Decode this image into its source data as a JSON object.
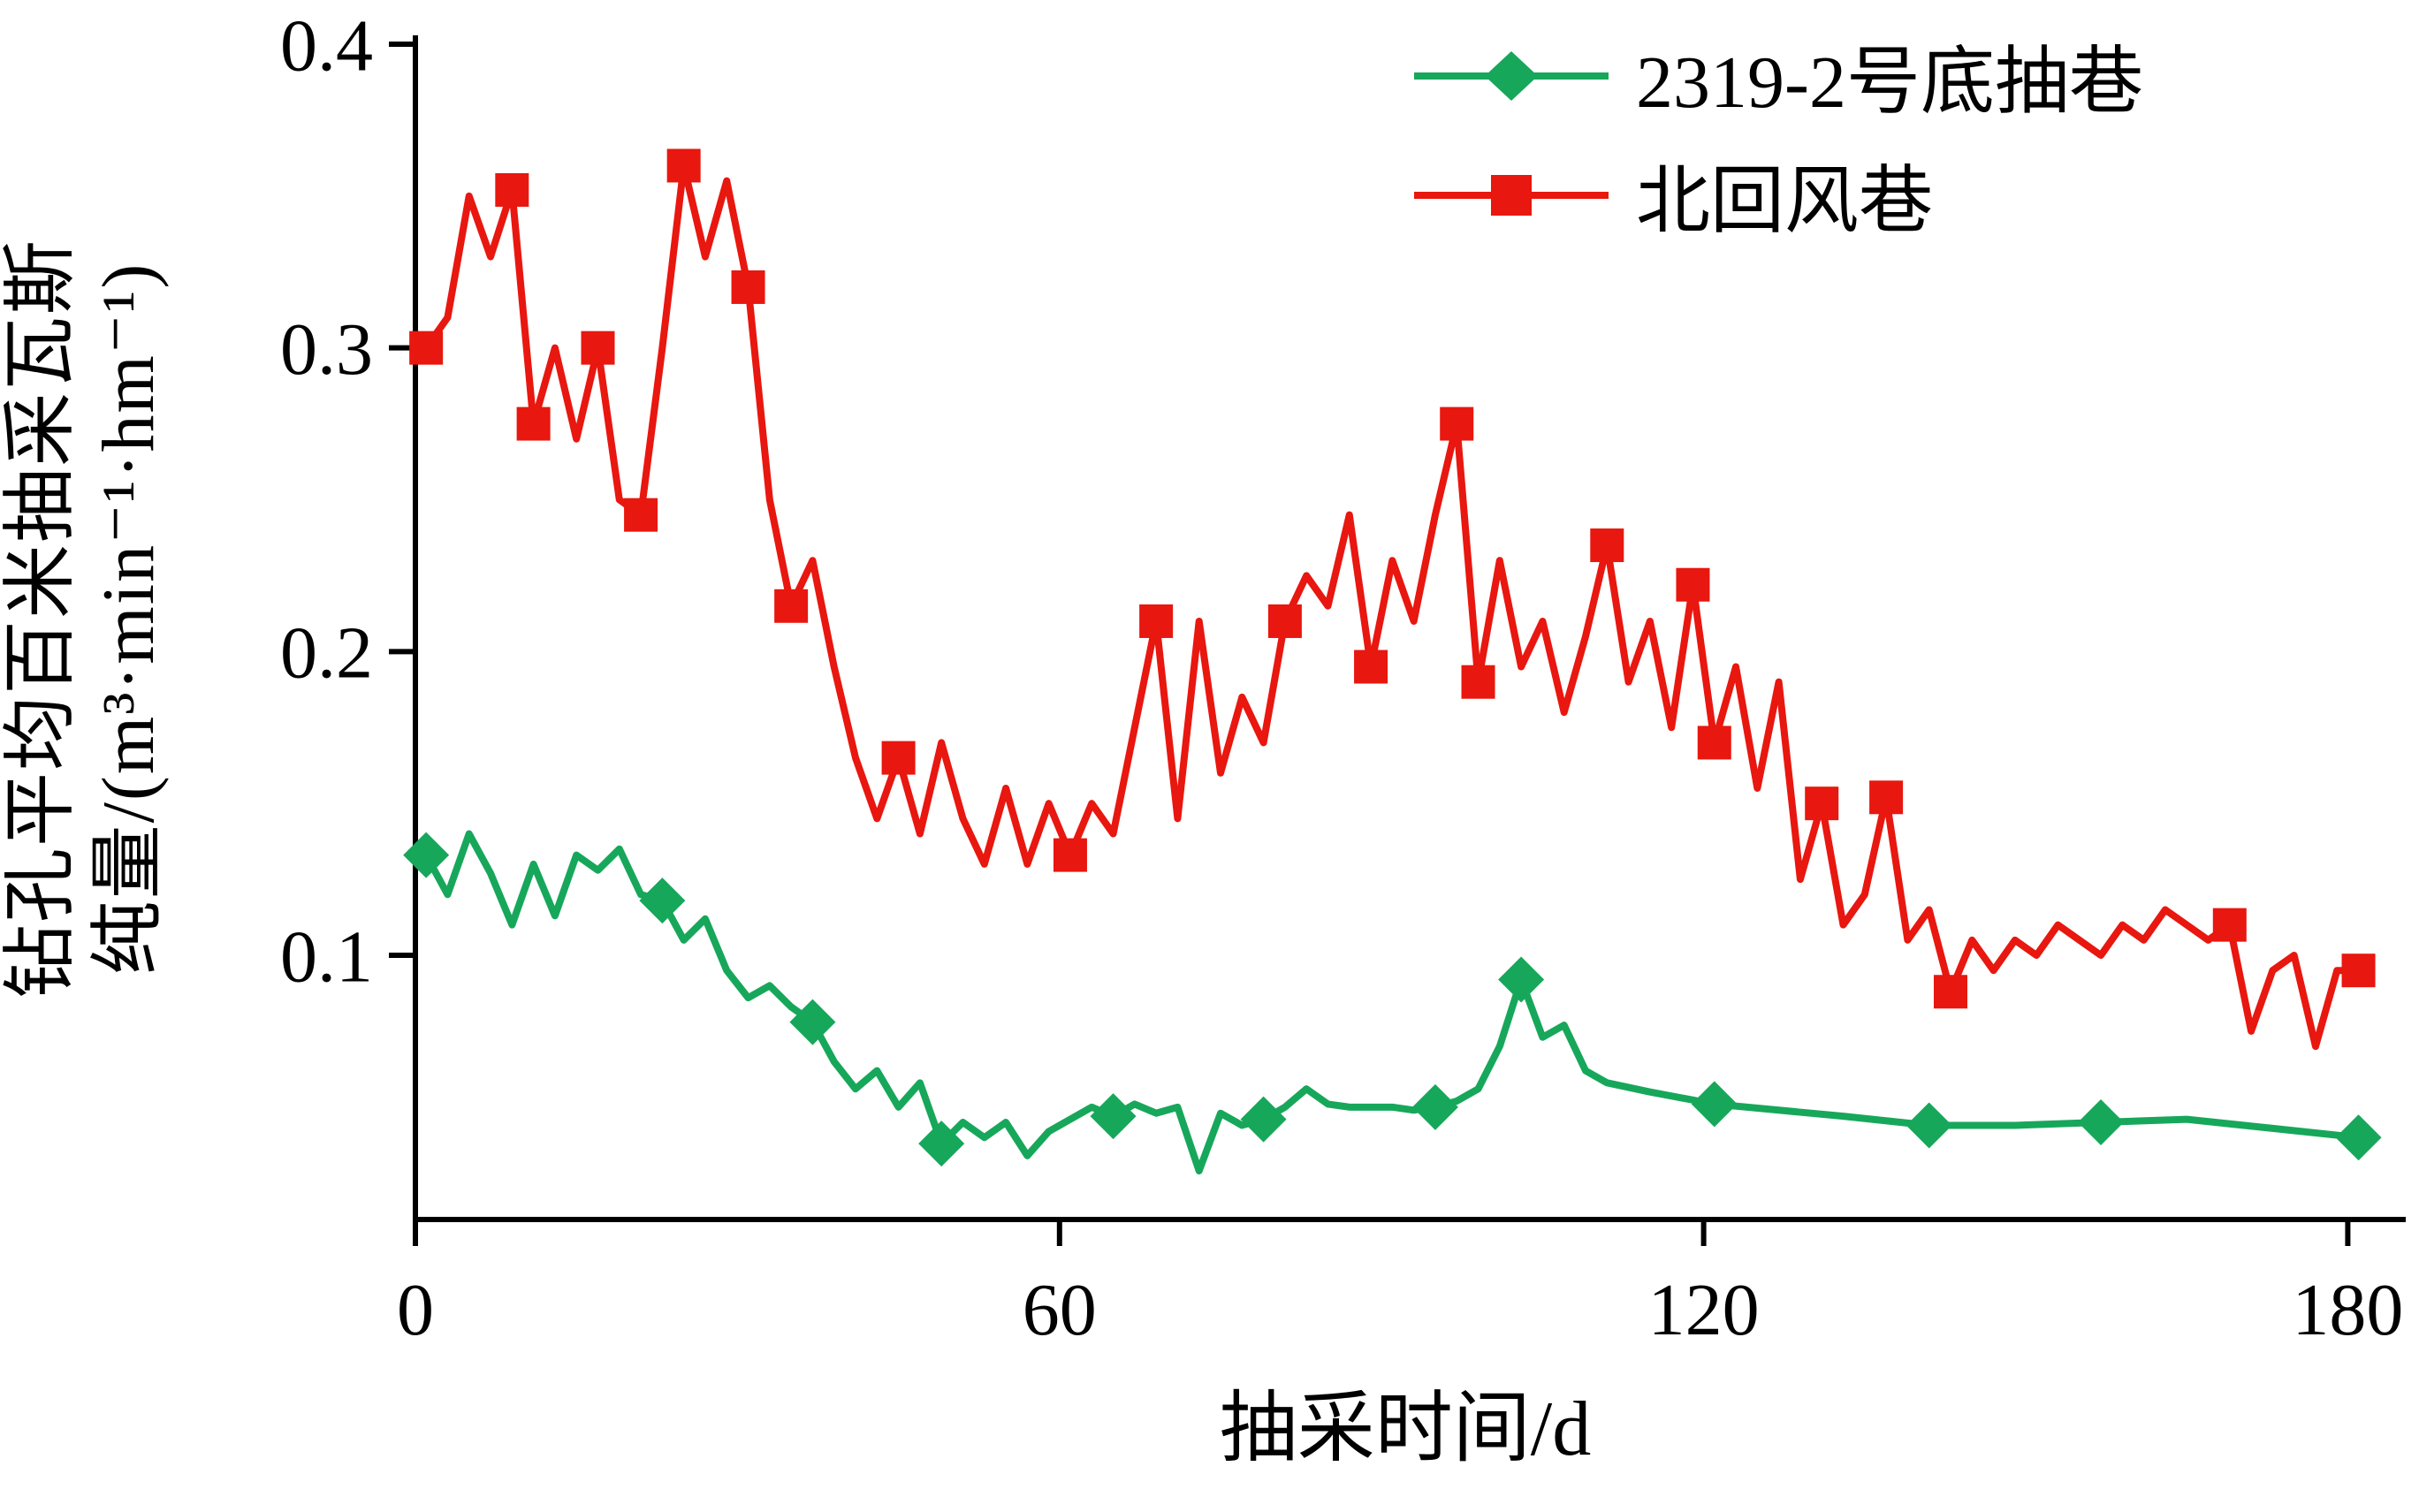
{
  "figure": {
    "background": "#ffffff",
    "ylabel_line1": "钻孔平均百米抽采瓦斯",
    "ylabel_line2": "纯量/(m³·min⁻¹·hm⁻¹)",
    "xlabel": "抽采时间/d"
  },
  "chart_data": {
    "type": "line",
    "title": "",
    "xlabel": "抽采时间/d",
    "ylabel": "钻孔平均百米抽采瓦斯纯量/(m³·min⁻¹·hm⁻¹)",
    "xlim": [
      0,
      184
    ],
    "ylim": [
      0.013,
      0.4
    ],
    "xticks": [
      0,
      60,
      120,
      180
    ],
    "yticks": [
      0.1,
      0.2,
      0.3,
      0.4
    ],
    "grid": false,
    "legend_position": "top-right",
    "series": [
      {
        "name": "2319-2号底抽巷",
        "color": "#17a75b",
        "marker": "diamond",
        "x": [
          1,
          3,
          5,
          7,
          9,
          11,
          13,
          15,
          17,
          19,
          21,
          23,
          25,
          27,
          29,
          31,
          33,
          35,
          37,
          39,
          41,
          43,
          45,
          47,
          49,
          51,
          53,
          55,
          57,
          59,
          61,
          63,
          65,
          67,
          69,
          71,
          73,
          75,
          77,
          79,
          81,
          83,
          85,
          87,
          89,
          91,
          93,
          95,
          97,
          99,
          101,
          103,
          105,
          107,
          109,
          111,
          115,
          121,
          127,
          133,
          141,
          149,
          157,
          165,
          173,
          181
        ],
        "y": [
          0.133,
          0.12,
          0.14,
          0.127,
          0.11,
          0.13,
          0.113,
          0.133,
          0.128,
          0.135,
          0.12,
          0.118,
          0.105,
          0.112,
          0.095,
          0.086,
          0.09,
          0.083,
          0.078,
          0.065,
          0.056,
          0.062,
          0.05,
          0.058,
          0.038,
          0.045,
          0.04,
          0.045,
          0.034,
          0.042,
          0.046,
          0.05,
          0.047,
          0.051,
          0.048,
          0.05,
          0.029,
          0.048,
          0.044,
          0.046,
          0.05,
          0.056,
          0.051,
          0.05,
          0.05,
          0.05,
          0.049,
          0.05,
          0.052,
          0.056,
          0.07,
          0.092,
          0.073,
          0.077,
          0.062,
          0.058,
          0.055,
          0.051,
          0.049,
          0.047,
          0.044,
          0.044,
          0.045,
          0.046,
          0.043,
          0.04
        ],
        "marker_indices": [
          0,
          11,
          18,
          24,
          32,
          39,
          47,
          51,
          57,
          60,
          62,
          65
        ]
      },
      {
        "name": "北回风巷",
        "color": "#e8170f",
        "marker": "square",
        "x": [
          1,
          3,
          5,
          7,
          9,
          11,
          13,
          15,
          17,
          19,
          21,
          23,
          25,
          27,
          29,
          31,
          33,
          35,
          37,
          39,
          41,
          43,
          45,
          47,
          49,
          51,
          53,
          55,
          57,
          59,
          61,
          63,
          65,
          67,
          69,
          71,
          73,
          75,
          77,
          79,
          81,
          83,
          85,
          87,
          89,
          91,
          93,
          95,
          97,
          99,
          101,
          103,
          105,
          107,
          109,
          111,
          113,
          115,
          117,
          119,
          121,
          123,
          125,
          127,
          129,
          131,
          133,
          135,
          137,
          139,
          141,
          143,
          145,
          147,
          149,
          151,
          153,
          155,
          157,
          159,
          161,
          163,
          165,
          167,
          169,
          171,
          173,
          175,
          177,
          179,
          181
        ],
        "y": [
          0.3,
          0.31,
          0.35,
          0.33,
          0.352,
          0.275,
          0.3,
          0.27,
          0.3,
          0.25,
          0.245,
          0.3,
          0.36,
          0.33,
          0.355,
          0.32,
          0.25,
          0.215,
          0.23,
          0.195,
          0.165,
          0.145,
          0.165,
          0.14,
          0.17,
          0.145,
          0.13,
          0.155,
          0.13,
          0.15,
          0.133,
          0.15,
          0.14,
          0.175,
          0.21,
          0.145,
          0.21,
          0.16,
          0.185,
          0.17,
          0.21,
          0.225,
          0.215,
          0.245,
          0.195,
          0.23,
          0.21,
          0.245,
          0.275,
          0.19,
          0.23,
          0.195,
          0.21,
          0.18,
          0.205,
          0.235,
          0.19,
          0.21,
          0.175,
          0.222,
          0.17,
          0.195,
          0.155,
          0.19,
          0.125,
          0.15,
          0.11,
          0.12,
          0.152,
          0.105,
          0.115,
          0.088,
          0.105,
          0.095,
          0.105,
          0.1,
          0.11,
          0.105,
          0.1,
          0.11,
          0.105,
          0.115,
          0.11,
          0.105,
          0.11,
          0.075,
          0.095,
          0.1,
          0.07,
          0.095,
          0.095
        ],
        "marker_indices": [
          0,
          4,
          5,
          8,
          10,
          12,
          15,
          17,
          22,
          30,
          34,
          40,
          44,
          48,
          49,
          55,
          59,
          60,
          65,
          68,
          71,
          84,
          90
        ]
      }
    ]
  }
}
